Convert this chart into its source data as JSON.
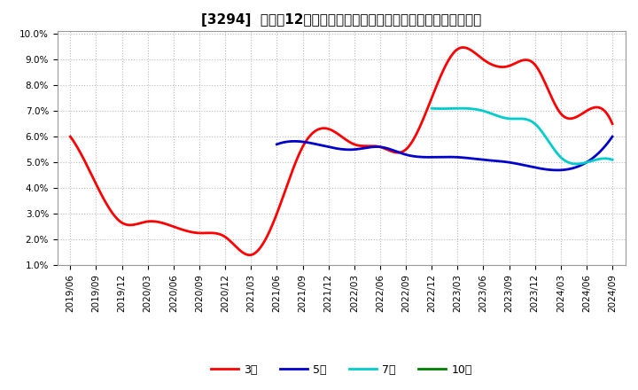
{
  "title": "[3294]  売上高12か月移動合計の対前年同期増減率の平均値の推移",
  "ylim": [
    0.01,
    0.1
  ],
  "yticks": [
    0.01,
    0.02,
    0.03,
    0.04,
    0.05,
    0.06,
    0.07,
    0.08,
    0.09,
    0.1
  ],
  "ytick_labels": [
    "1.0%",
    "2.0%",
    "3.0%",
    "4.0%",
    "5.0%",
    "6.0%",
    "7.0%",
    "8.0%",
    "9.0%",
    "10.0%"
  ],
  "x_labels": [
    "2019/06",
    "2019/09",
    "2019/12",
    "2020/03",
    "2020/06",
    "2020/09",
    "2020/12",
    "2021/03",
    "2021/06",
    "2021/09",
    "2021/12",
    "2022/03",
    "2022/06",
    "2022/09",
    "2022/12",
    "2023/03",
    "2023/06",
    "2023/09",
    "2023/12",
    "2024/03",
    "2024/06",
    "2024/09"
  ],
  "series_3y": {
    "label": "3年",
    "color": "#ff0000",
    "data": [
      [
        "2019/06",
        0.06
      ],
      [
        "2019/09",
        0.0415
      ],
      [
        "2019/12",
        0.0265
      ],
      [
        "2020/03",
        0.027
      ],
      [
        "2020/06",
        0.025
      ],
      [
        "2020/09",
        0.0225
      ],
      [
        "2020/12",
        0.021
      ],
      [
        "2021/03",
        0.014
      ],
      [
        "2021/06",
        0.03
      ],
      [
        "2021/09",
        0.056
      ],
      [
        "2021/12",
        0.063
      ],
      [
        "2022/03",
        0.057
      ],
      [
        "2022/06",
        0.056
      ],
      [
        "2022/09",
        0.055
      ],
      [
        "2022/12",
        0.075
      ],
      [
        "2023/03",
        0.094
      ],
      [
        "2023/06",
        0.09
      ],
      [
        "2023/09",
        0.0875
      ],
      [
        "2023/12",
        0.088
      ],
      [
        "2024/03",
        0.069
      ],
      [
        "2024/06",
        0.07
      ],
      [
        "2024/09",
        0.065
      ]
    ]
  },
  "series_5y": {
    "label": "5年",
    "color": "#0000cc",
    "data": [
      [
        "2021/06",
        0.057
      ],
      [
        "2021/09",
        0.058
      ],
      [
        "2021/12",
        0.056
      ],
      [
        "2022/03",
        0.055
      ],
      [
        "2022/06",
        0.056
      ],
      [
        "2022/09",
        0.053
      ],
      [
        "2022/12",
        0.052
      ],
      [
        "2023/03",
        0.052
      ],
      [
        "2023/06",
        0.051
      ],
      [
        "2023/09",
        0.05
      ],
      [
        "2023/12",
        0.048
      ],
      [
        "2024/03",
        0.047
      ],
      [
        "2024/06",
        0.05
      ],
      [
        "2024/09",
        0.06
      ]
    ]
  },
  "series_7y": {
    "label": "7年",
    "color": "#00cccc",
    "data": [
      [
        "2022/12",
        0.071
      ],
      [
        "2023/03",
        0.071
      ],
      [
        "2023/06",
        0.07
      ],
      [
        "2023/09",
        0.067
      ],
      [
        "2023/12",
        0.065
      ],
      [
        "2024/03",
        0.052
      ],
      [
        "2024/06",
        0.05
      ],
      [
        "2024/09",
        0.051
      ]
    ]
  },
  "series_10y": {
    "label": "10年",
    "color": "#008000",
    "data": []
  },
  "background_color": "#ffffff",
  "grid_color": "#bbbbbb",
  "title_fontsize": 11,
  "tick_fontsize": 7.5,
  "legend_fontsize": 9
}
